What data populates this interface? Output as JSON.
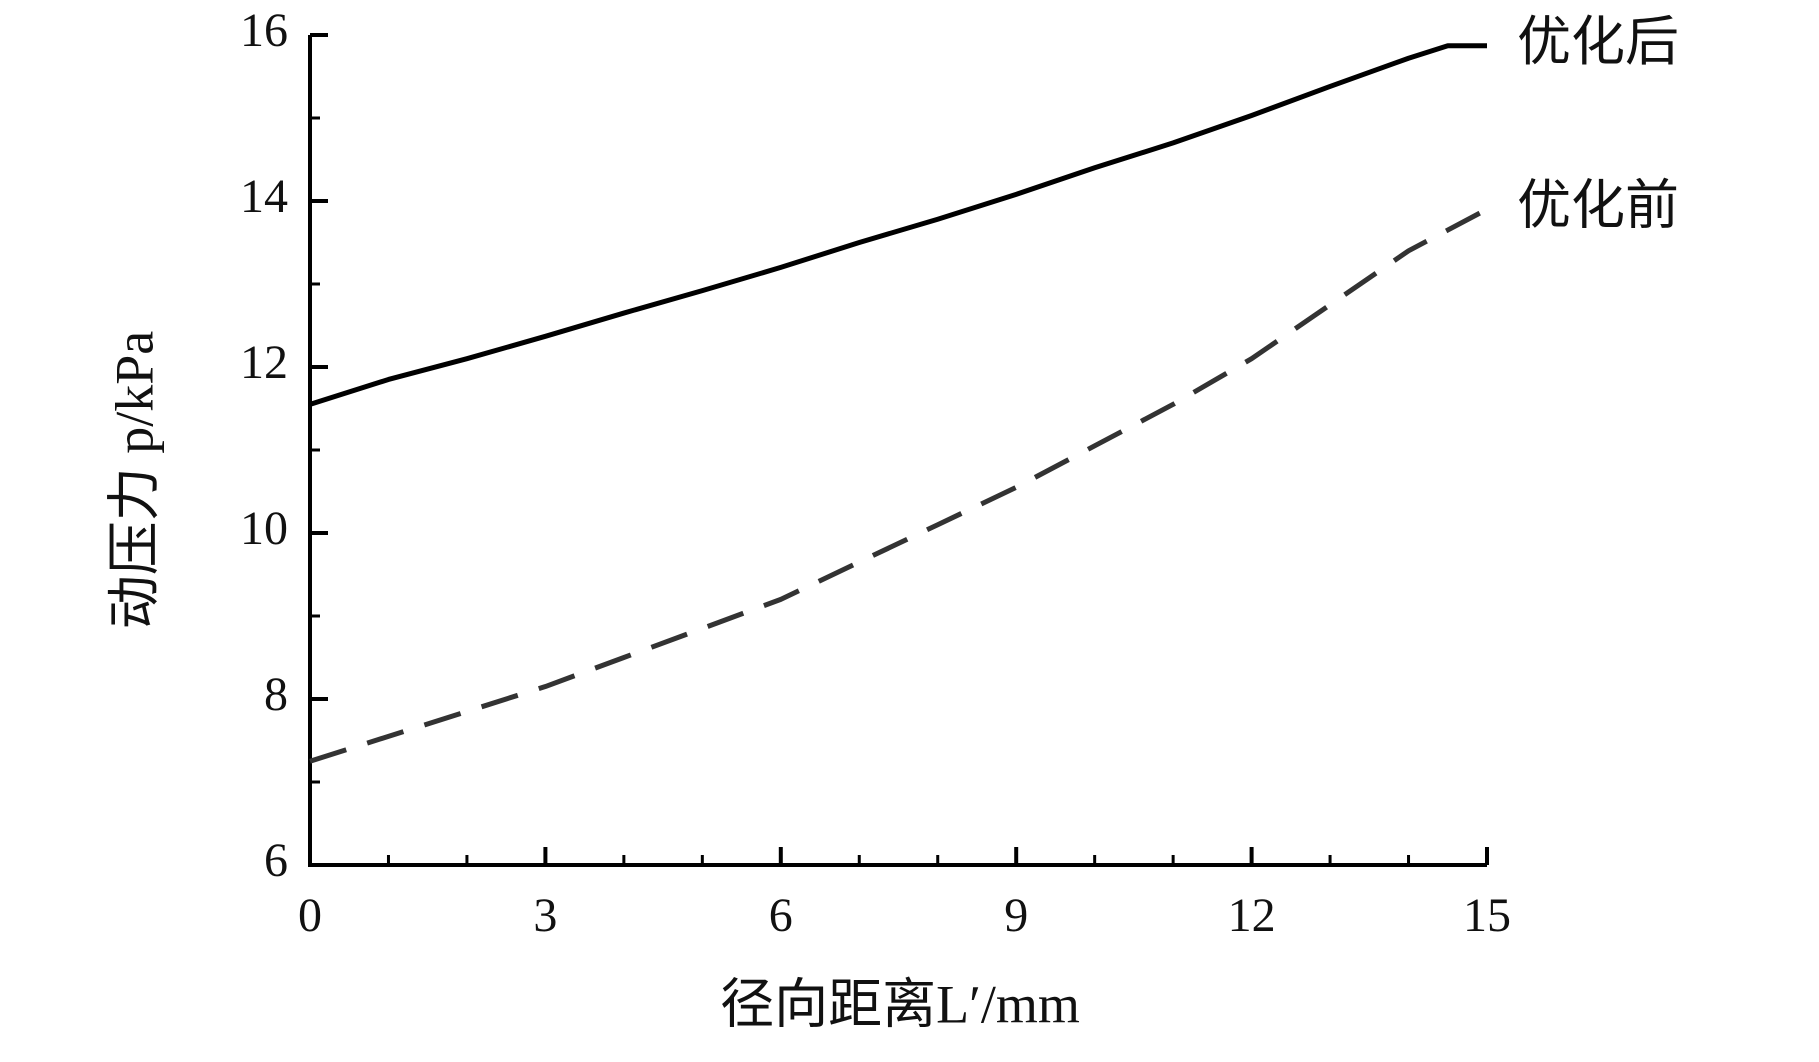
{
  "chart_data": {
    "type": "line",
    "x_label": "径向距离L′/mm",
    "y_label": "动压力 p/kPa",
    "x": [
      0,
      1,
      2,
      3,
      4,
      5,
      6,
      7,
      8,
      9,
      10,
      11,
      12,
      13,
      14,
      14.5,
      15
    ],
    "series": [
      {
        "name": "优化后",
        "color": "#000000",
        "dash": false,
        "values": [
          11.55,
          11.85,
          12.1,
          12.37,
          12.65,
          12.92,
          13.2,
          13.5,
          13.78,
          14.08,
          14.4,
          14.7,
          15.03,
          15.38,
          15.72,
          15.87,
          15.87
        ]
      },
      {
        "name": "优化前",
        "color": "#333333",
        "dash": true,
        "values": [
          7.25,
          7.55,
          7.85,
          8.15,
          8.5,
          8.85,
          9.2,
          9.65,
          10.1,
          10.55,
          11.05,
          11.55,
          12.1,
          12.75,
          13.4,
          13.65,
          13.9
        ]
      }
    ],
    "xlim": [
      0,
      15
    ],
    "xticks": [
      0,
      3,
      6,
      9,
      12,
      15
    ],
    "ylim": [
      6,
      16
    ],
    "yticks": [
      6,
      8,
      10,
      12,
      14,
      16
    ]
  }
}
